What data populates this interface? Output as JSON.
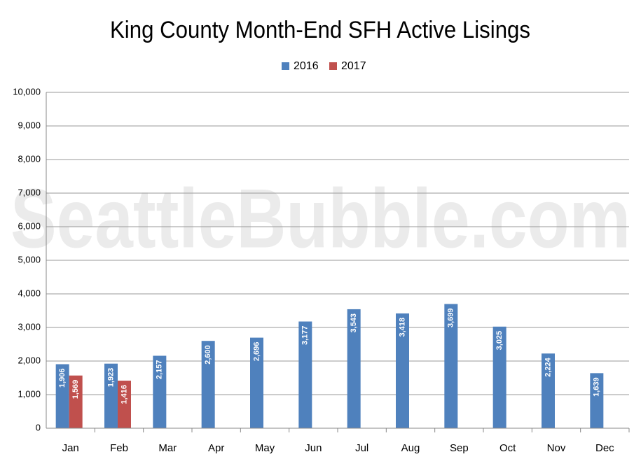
{
  "chart_data": {
    "type": "bar",
    "title": "King County Month-End SFH Active Lisings",
    "watermark": "SeattleBubble.com",
    "categories": [
      "Jan",
      "Feb",
      "Mar",
      "Apr",
      "May",
      "Jun",
      "Jul",
      "Aug",
      "Sep",
      "Oct",
      "Nov",
      "Dec"
    ],
    "series": [
      {
        "name": "2016",
        "color": "#4f81bd",
        "values": [
          1906,
          1923,
          2157,
          2600,
          2696,
          3177,
          3543,
          3418,
          3699,
          3025,
          2224,
          1639
        ],
        "value_labels": [
          "1,906",
          "1,923",
          "2,157",
          "2,600",
          "2,696",
          "3,177",
          "3,543",
          "3,418",
          "3,699",
          "3,025",
          "2,224",
          "1,639"
        ]
      },
      {
        "name": "2017",
        "color": "#c0504d",
        "values": [
          1569,
          1416,
          null,
          null,
          null,
          null,
          null,
          null,
          null,
          null,
          null,
          null
        ],
        "value_labels": [
          "1,569",
          "1,416",
          null,
          null,
          null,
          null,
          null,
          null,
          null,
          null,
          null,
          null
        ]
      }
    ],
    "ylim": [
      0,
      10000
    ],
    "yticks": [
      0,
      {
        "value": 1000,
        "label": "1,000"
      },
      {
        "value": 2000,
        "label": "2,000"
      },
      {
        "value": 3000,
        "label": "3,000"
      },
      {
        "value": 4000,
        "label": "4,000"
      },
      {
        "value": 5000,
        "label": "5,000"
      },
      {
        "value": 6000,
        "label": "6,000"
      },
      {
        "value": 7000,
        "label": "7,000"
      },
      {
        "value": 8000,
        "label": "8,000"
      },
      {
        "value": 9000,
        "label": "9,000"
      },
      {
        "value": 10000,
        "label": "10,000"
      }
    ],
    "grid": true,
    "legend": "top"
  }
}
